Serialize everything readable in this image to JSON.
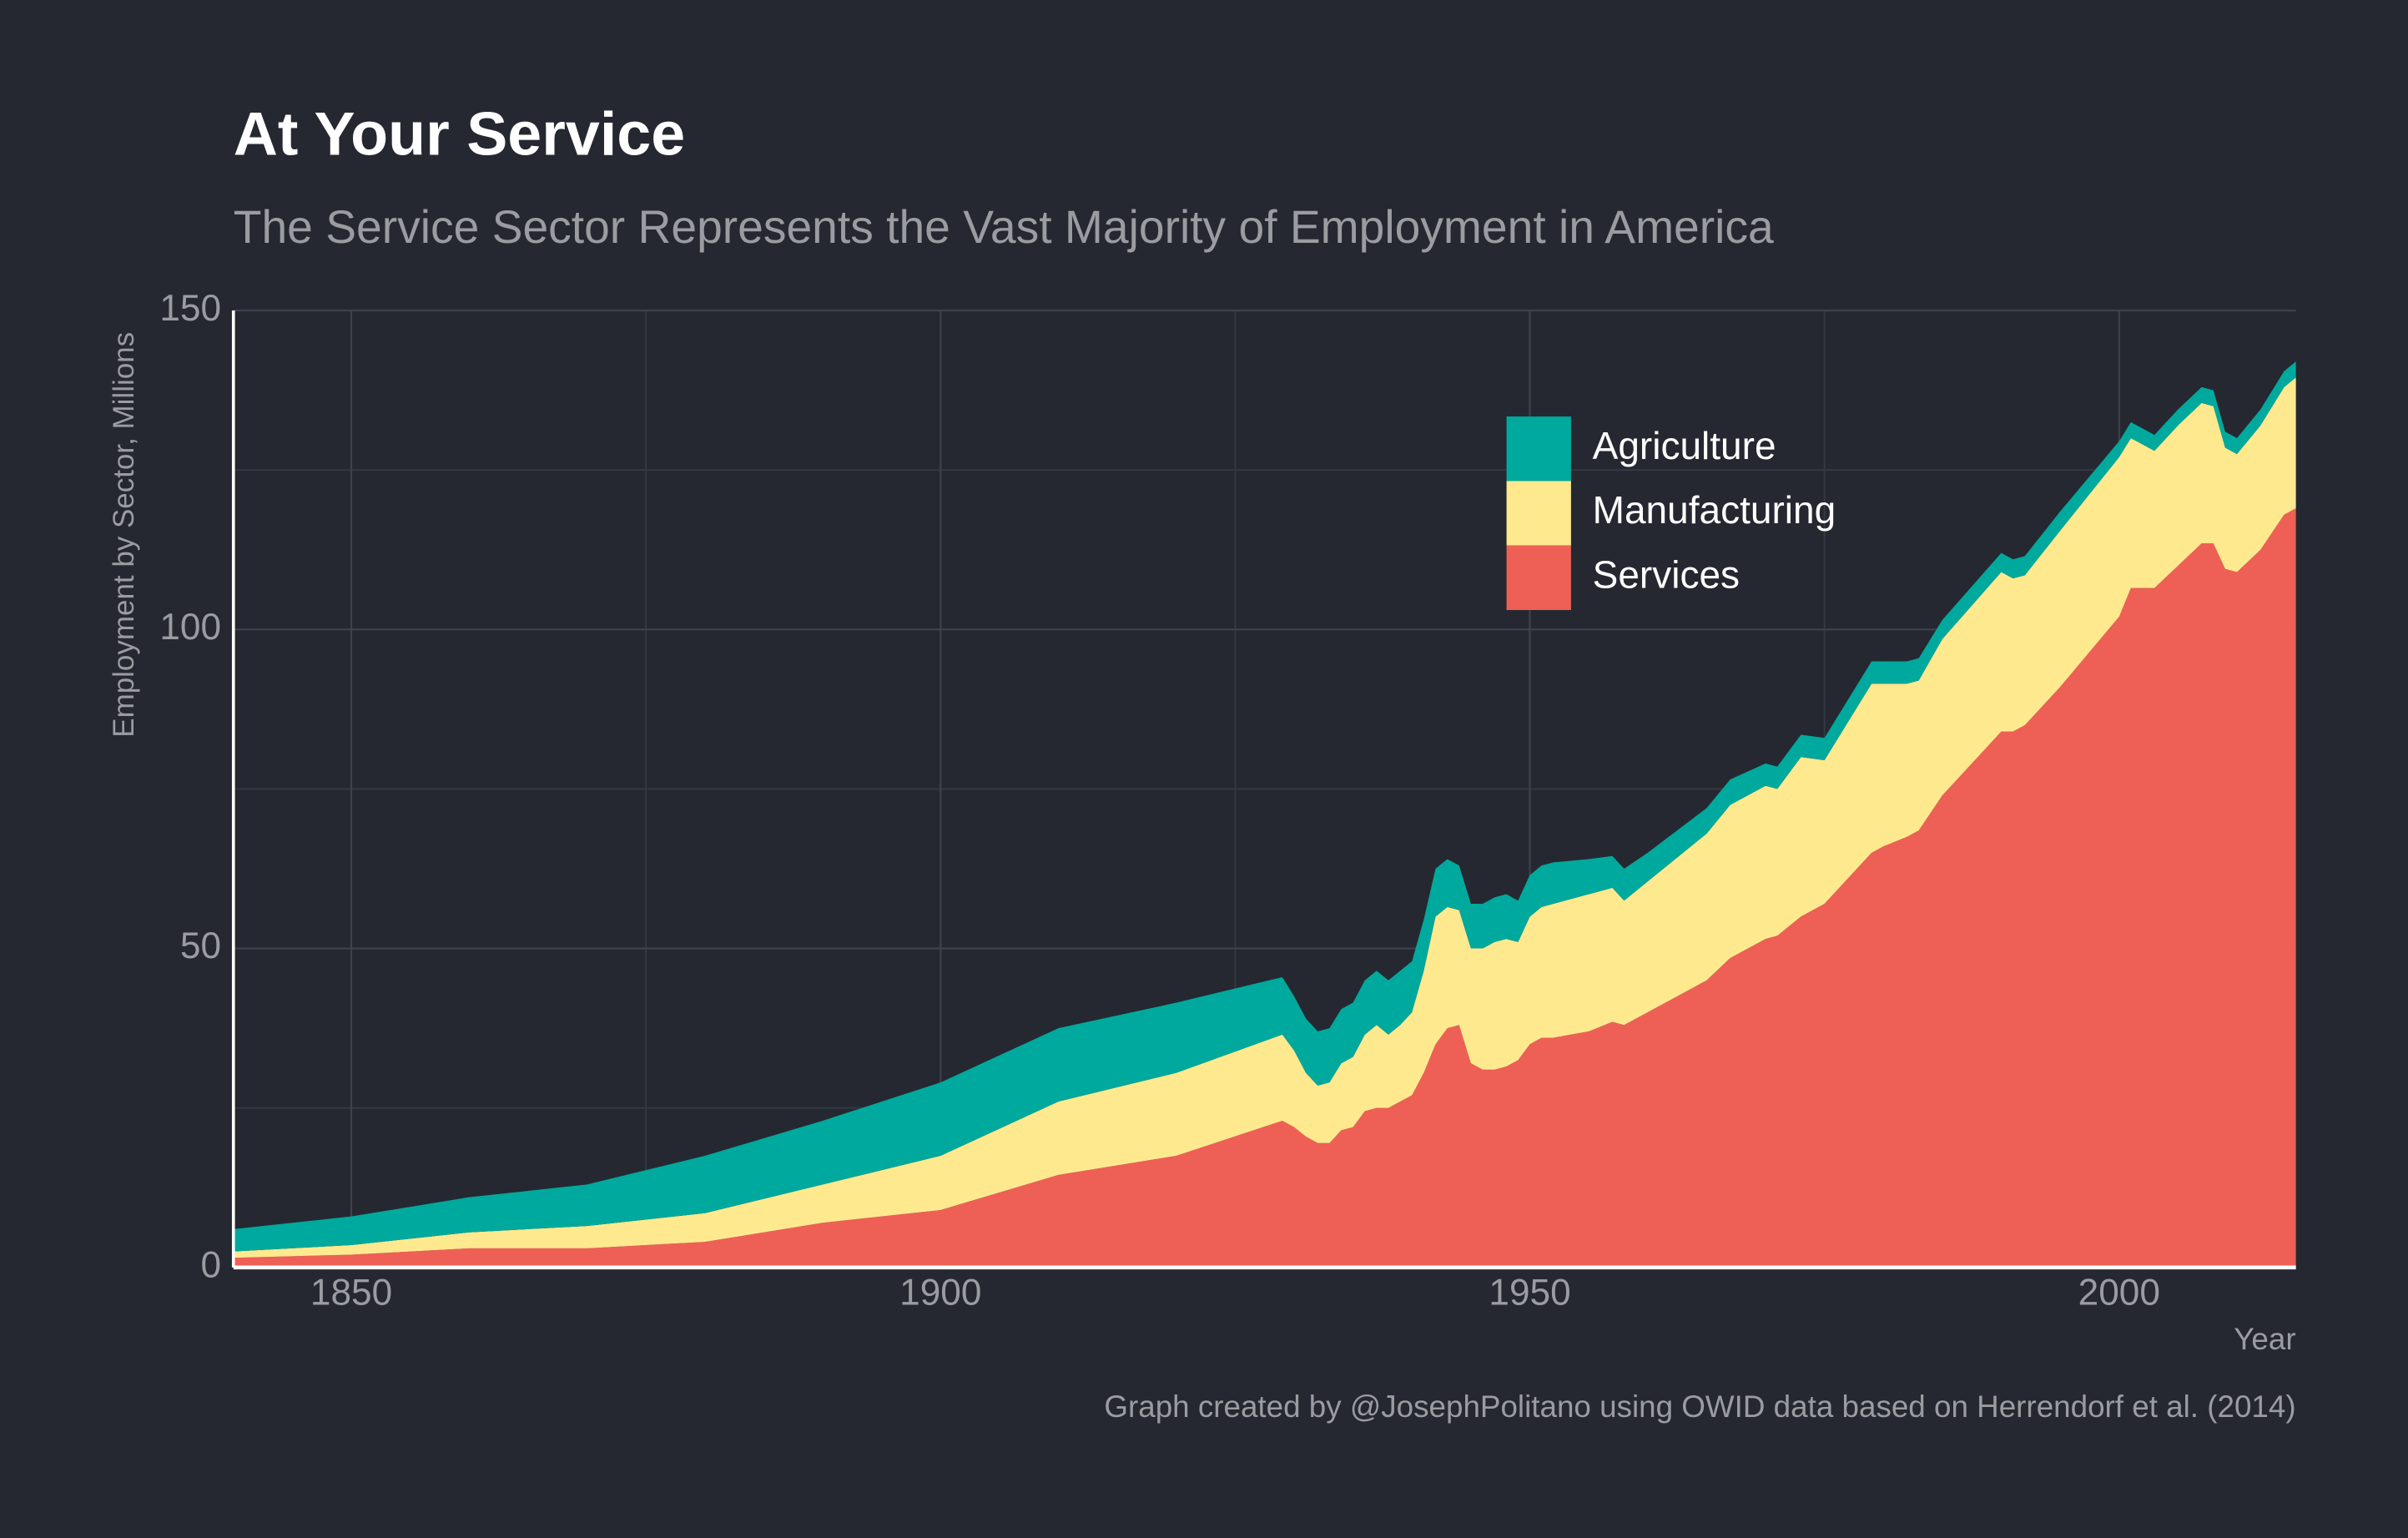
{
  "chart_data": {
    "type": "stacked_area",
    "title": "At Your Service",
    "subtitle": "The Service Sector Represents the Vast Majority of Employment in America",
    "y_label": "Employment by Sector, Millions",
    "x_label": "Year",
    "caption": "Graph created by @JosephPolitano using OWID data based on Herrendorf et al. (2014)",
    "x": [
      1840,
      1850,
      1860,
      1870,
      1880,
      1890,
      1900,
      1910,
      1920,
      1929,
      1930,
      1931,
      1932,
      1933,
      1934,
      1935,
      1936,
      1937,
      1938,
      1939,
      1940,
      1941,
      1942,
      1943,
      1944,
      1945,
      1946,
      1947,
      1948,
      1949,
      1950,
      1951,
      1952,
      1955,
      1957,
      1958,
      1960,
      1965,
      1967,
      1970,
      1971,
      1973,
      1975,
      1979,
      1980,
      1982,
      1983,
      1985,
      1990,
      1991,
      1992,
      1995,
      2000,
      2001,
      2003,
      2005,
      2007,
      2008,
      2009,
      2010,
      2012,
      2014,
      2015
    ],
    "series": [
      {
        "name": "Services",
        "color": "#ee6055",
        "values": [
          1.5,
          2,
          3,
          3,
          4,
          7,
          9,
          14.5,
          17.5,
          23,
          22,
          20.5,
          19.5,
          19.5,
          21.5,
          22,
          24.5,
          25,
          25,
          26,
          27,
          30.5,
          35,
          37.5,
          38,
          32,
          31,
          31,
          31.5,
          32.5,
          35,
          36,
          36,
          37,
          38.5,
          38,
          40,
          45,
          48.5,
          51.5,
          52,
          55,
          57,
          65,
          66,
          67.5,
          68.5,
          74,
          84,
          84,
          85,
          91,
          102,
          106.5,
          106.5,
          110,
          113.5,
          113.5,
          109.5,
          109,
          112.5,
          118,
          119
        ]
      },
      {
        "name": "Manufacturing",
        "color": "#ffe98f",
        "values": [
          1,
          1.5,
          2.5,
          3.5,
          4.5,
          6,
          8.5,
          11.5,
          13,
          13.5,
          12,
          10,
          9,
          9.5,
          10.5,
          11,
          12,
          13,
          11.5,
          12,
          13,
          16,
          20,
          19,
          18,
          18,
          19,
          20,
          20,
          18.5,
          20,
          20.5,
          21,
          21.5,
          21,
          19.5,
          20.5,
          23,
          24,
          24,
          23,
          25,
          22.5,
          26.5,
          25.5,
          24,
          23.5,
          24.5,
          25,
          24,
          23.5,
          24.5,
          25,
          23.5,
          21.5,
          22,
          22,
          21.5,
          19,
          18.5,
          19.5,
          20,
          20.5
        ]
      },
      {
        "name": "Agriculture",
        "color": "#00a99d",
        "values": [
          3.5,
          4.5,
          5.5,
          6.5,
          9,
          10,
          11.5,
          11.5,
          11,
          9,
          8.5,
          8.5,
          8.5,
          8.5,
          8.5,
          8.5,
          8.5,
          8.5,
          8.5,
          8.5,
          8,
          8,
          7.5,
          7.5,
          7,
          7,
          7,
          7,
          7,
          6.5,
          6.5,
          6.5,
          6.5,
          5.5,
          5,
          5,
          4.5,
          4,
          4,
          3.5,
          3.5,
          3.5,
          3.5,
          3.5,
          3.5,
          3.5,
          3.5,
          3,
          3,
          3,
          3,
          3,
          2.5,
          2.5,
          2.5,
          2.5,
          2.5,
          2.5,
          2.5,
          2.5,
          2.5,
          2.5,
          2.5
        ]
      }
    ],
    "xlim": [
      1840,
      2015
    ],
    "xticks": [
      1850,
      1900,
      1950,
      2000
    ],
    "ylim": [
      0,
      150
    ],
    "yticks": [
      0,
      50,
      100,
      150
    ],
    "grid": true,
    "legend": "top-right"
  }
}
